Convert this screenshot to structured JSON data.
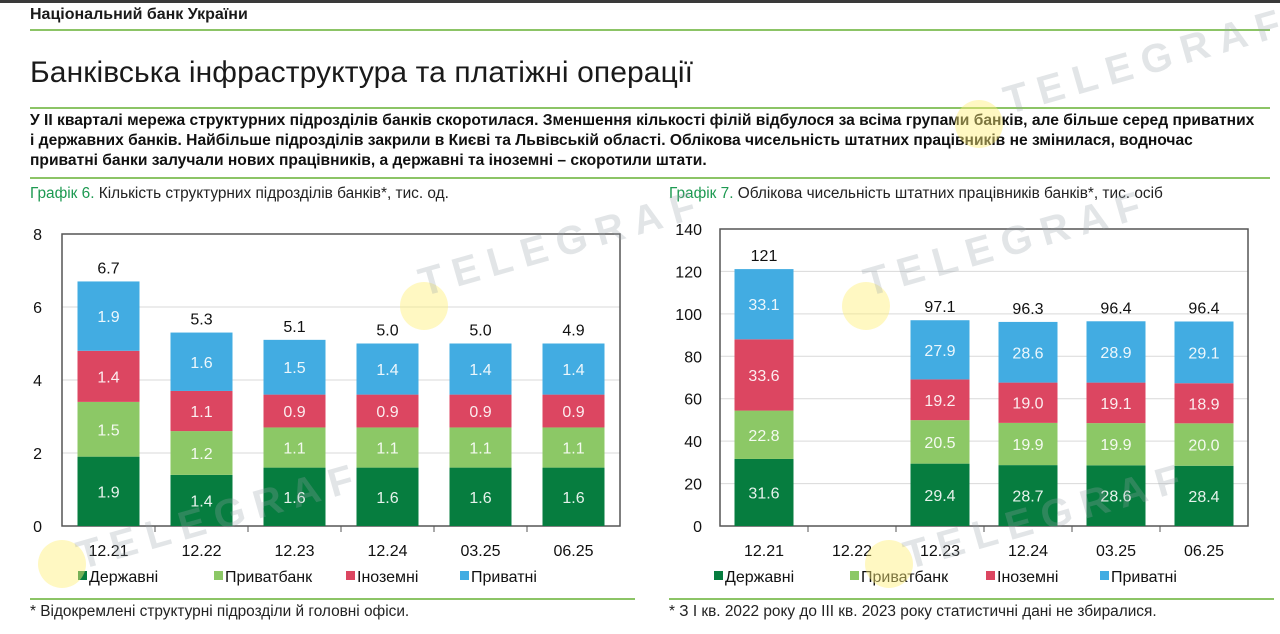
{
  "header": {
    "organization": "Національний банк України",
    "title": "Банківська інфраструктура та платіжні операції",
    "lead": "У II кварталі мережа структурних підрозділів банків скоротилася. Зменшення кількості філій відбулося за всіма групами банків, але більше серед приватних і державних банків. Найбільше підрозділів закрили в Києві та Львівській області. Облікова чисельність штатних працівників не змінилася, водночас приватні банки залучали нових працівників, а державні та іноземні – скоротили штати."
  },
  "watermark": "TELEGRAF",
  "colors": {
    "state": "#067d3f",
    "privatbank": "#8cc866",
    "foreign": "#dc4661",
    "private": "#42ace2",
    "accent_green": "#1e9a52",
    "rule": "#8cc466"
  },
  "chart_data": [
    {
      "type": "bar",
      "stacked": true,
      "caption_number": "Графік 6.",
      "title": "Кількість структурних підрозділів банків*, тис. од.",
      "categories": [
        "12.21",
        "12.22",
        "12.23",
        "12.24",
        "03.25",
        "06.25"
      ],
      "series": [
        {
          "name": "Державні",
          "color_key": "state",
          "values": [
            1.9,
            1.4,
            1.6,
            1.6,
            1.6,
            1.6
          ]
        },
        {
          "name": "Приватбанк",
          "color_key": "privatbank",
          "values": [
            1.5,
            1.2,
            1.1,
            1.1,
            1.1,
            1.1
          ]
        },
        {
          "name": "Іноземні",
          "color_key": "foreign",
          "values": [
            1.4,
            1.1,
            0.9,
            0.9,
            0.9,
            0.9
          ]
        },
        {
          "name": "Приватні",
          "color_key": "private",
          "values": [
            1.9,
            1.6,
            1.5,
            1.4,
            1.4,
            1.4
          ]
        }
      ],
      "totals": [
        "6.7",
        "5.3",
        "5.1",
        "5.0",
        "5.0",
        "4.9"
      ],
      "ylim": [
        0,
        8
      ],
      "yticks": [
        0,
        2,
        4,
        6,
        8
      ],
      "grid": true,
      "legend": "bottom",
      "footnote": "* Відокремлені структурні підрозділи й головні офіси."
    },
    {
      "type": "bar",
      "stacked": true,
      "caption_number": "Графік 7.",
      "title": "Облікова чисельність штатних працівників банків*, тис. осіб",
      "categories": [
        "12.21",
        "12.22",
        "12.23",
        "12.24",
        "03.25",
        "06.25"
      ],
      "series": [
        {
          "name": "Державні",
          "color_key": "state",
          "values": [
            31.6,
            null,
            29.4,
            28.7,
            28.6,
            28.4
          ]
        },
        {
          "name": "Приватбанк",
          "color_key": "privatbank",
          "values": [
            22.8,
            null,
            20.5,
            19.9,
            19.9,
            20.0
          ]
        },
        {
          "name": "Іноземні",
          "color_key": "foreign",
          "values": [
            33.6,
            null,
            19.2,
            19.0,
            19.1,
            18.9
          ]
        },
        {
          "name": "Приватні",
          "color_key": "private",
          "values": [
            33.1,
            null,
            27.9,
            28.6,
            28.9,
            29.1
          ]
        }
      ],
      "totals": [
        "121",
        null,
        "97.1",
        "96.3",
        "96.4",
        "96.4"
      ],
      "ylim": [
        0,
        140
      ],
      "yticks": [
        0,
        20,
        40,
        60,
        80,
        100,
        120,
        140
      ],
      "grid": true,
      "legend": "bottom",
      "footnote": "* З I кв. 2022 року до III кв. 2023 року статистичні дані не збиралися."
    }
  ]
}
